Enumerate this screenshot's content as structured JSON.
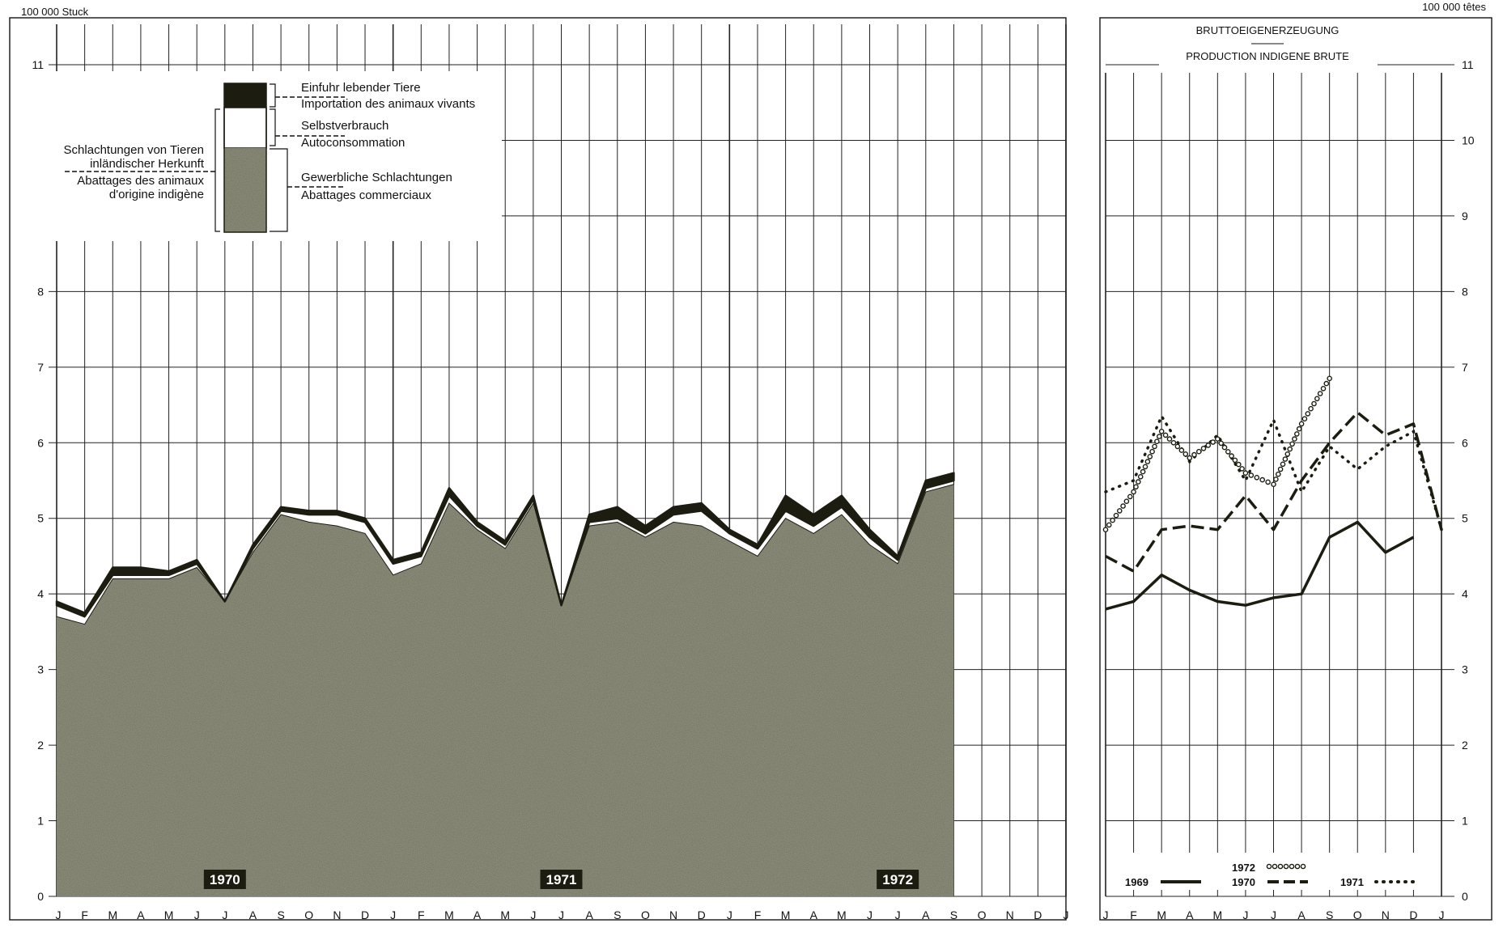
{
  "left_unit": "100 000 Stuck",
  "right_unit": "100 000 têtes",
  "legend": {
    "import": [
      "Einfuhr lebender Tiere",
      "Importation des animaux vivants"
    ],
    "self": [
      "Selbstverbrauch",
      "Autoconsommation"
    ],
    "commercial": [
      "Gewerbliche Schlachtungen",
      "Abattages commerciaux"
    ],
    "domestic": [
      "Schlachtungen von Tieren",
      "inländischer Herkunft",
      "Abattages des animaux",
      "d'origine indigène"
    ]
  },
  "right_title": [
    "BRUTTOEIGENERZEUGUNG",
    "PRODUCTION INDIGENE BRUTE"
  ],
  "colors": {
    "ink": "#1c1d10",
    "stipple": "#4a4a3a",
    "grid": "#222222",
    "background": "#ffffff"
  },
  "chart_data": [
    {
      "type": "area",
      "y_ticks": [
        "0",
        "1",
        "2",
        "3",
        "4",
        "5",
        "6",
        "7",
        "8",
        "11"
      ],
      "ylim": [
        0,
        11.5
      ],
      "x_tick_labels": [
        "J",
        "F",
        "M",
        "A",
        "M",
        "J",
        "J",
        "A",
        "S",
        "O",
        "N",
        "D",
        "J",
        "F",
        "M",
        "A",
        "M",
        "J",
        "J",
        "A",
        "S",
        "O",
        "N",
        "D",
        "J",
        "F",
        "M",
        "A",
        "M",
        "J",
        "J",
        "A",
        "S",
        "O",
        "N",
        "D",
        "J"
      ],
      "year_labels": [
        {
          "text": "1970",
          "month_index": 6
        },
        {
          "text": "1971",
          "month_index": 18
        },
        {
          "text": "1972",
          "month_index": 30
        }
      ],
      "series": [
        {
          "name": "Gewerbliche Schlachtungen",
          "values": [
            3.7,
            3.6,
            4.2,
            4.2,
            4.2,
            4.35,
            3.9,
            4.55,
            5.05,
            4.95,
            4.9,
            4.8,
            4.25,
            4.4,
            5.2,
            4.85,
            4.6,
            5.2,
            3.85,
            4.9,
            4.95,
            4.75,
            4.95,
            4.9,
            4.7,
            4.5,
            5.0,
            4.8,
            5.05,
            4.65,
            4.4,
            5.35,
            5.45
          ]
        },
        {
          "name": "Selbstverbrauch",
          "values": [
            0.15,
            0.1,
            0.05,
            0.05,
            0.05,
            0.05,
            0.0,
            0.05,
            0.05,
            0.1,
            0.15,
            0.15,
            0.15,
            0.1,
            0.1,
            0.05,
            0.05,
            0.05,
            0.0,
            0.05,
            0.05,
            0.05,
            0.1,
            0.2,
            0.1,
            0.1,
            0.1,
            0.1,
            0.1,
            0.1,
            0.05,
            0.05,
            0.05
          ]
        },
        {
          "name": "Einfuhr lebender Tiere",
          "values": [
            0.05,
            0.05,
            0.1,
            0.1,
            0.05,
            0.05,
            0.0,
            0.05,
            0.05,
            0.05,
            0.05,
            0.05,
            0.05,
            0.05,
            0.1,
            0.05,
            0.05,
            0.05,
            0.0,
            0.1,
            0.15,
            0.1,
            0.1,
            0.1,
            0.05,
            0.05,
            0.2,
            0.15,
            0.15,
            0.1,
            0.05,
            0.1,
            0.1
          ]
        }
      ]
    },
    {
      "type": "line",
      "title": "BRUTTOEIGENERZEUGUNG / PRODUCTION INDIGENE BRUTE",
      "y_ticks": [
        "0",
        "1",
        "2",
        "3",
        "4",
        "5",
        "6",
        "7",
        "8",
        "9",
        "10",
        "11"
      ],
      "ylim": [
        0,
        11.5
      ],
      "categories": [
        "J",
        "F",
        "M",
        "A",
        "M",
        "J",
        "J",
        "A",
        "S",
        "O",
        "N",
        "D",
        "J"
      ],
      "series": [
        {
          "name": "1969",
          "style": "solid",
          "values": [
            3.8,
            3.9,
            4.25,
            4.05,
            3.9,
            3.85,
            3.95,
            4.0,
            4.75,
            4.95,
            4.55,
            4.75,
            null
          ]
        },
        {
          "name": "1970",
          "style": "dashed",
          "values": [
            4.5,
            4.3,
            4.85,
            4.9,
            4.85,
            5.3,
            4.85,
            5.5,
            6.0,
            6.4,
            6.1,
            6.25,
            4.85
          ]
        },
        {
          "name": "1971",
          "style": "dotted",
          "values": [
            5.35,
            5.5,
            6.35,
            5.75,
            6.1,
            5.5,
            6.3,
            5.35,
            5.95,
            5.65,
            5.95,
            6.15,
            4.85
          ]
        },
        {
          "name": "1972",
          "style": "circles",
          "values": [
            4.85,
            5.35,
            6.15,
            5.8,
            6.05,
            5.6,
            5.45,
            6.25,
            6.85,
            null,
            null,
            null,
            null
          ]
        }
      ]
    }
  ]
}
